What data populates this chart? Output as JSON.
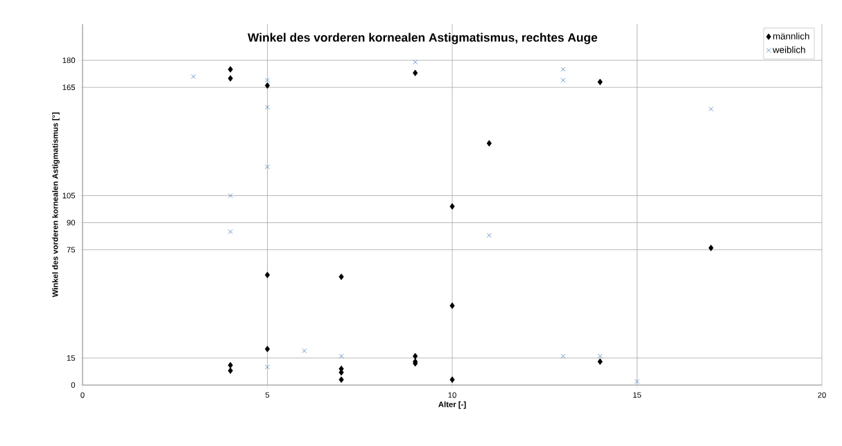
{
  "chart_data": {
    "type": "scatter",
    "title": "Winkel des vorderen kornealen Astigmatismus, rechtes Auge",
    "xlabel": "Alter [-]",
    "ylabel": "Winkel des vorderen kornealen Astigmatismus [°]",
    "xlim": [
      0,
      20
    ],
    "ylim": [
      0,
      200
    ],
    "xticks": [
      0,
      5,
      10,
      15,
      20
    ],
    "yticks": [
      0,
      15,
      75,
      90,
      105,
      165,
      180
    ],
    "grid": true,
    "legend": "top right",
    "series": [
      {
        "name": "männlich",
        "color": "#000000",
        "marker": "diamond",
        "x": [
          4,
          4,
          4,
          4,
          5,
          5,
          5,
          7,
          7,
          7,
          7,
          9,
          9,
          9,
          9,
          10,
          10,
          10,
          11,
          14,
          14,
          17
        ],
        "values": [
          175,
          170,
          11,
          8,
          166,
          61,
          20,
          60,
          9,
          7,
          3,
          173,
          16,
          13,
          12,
          99,
          44,
          3,
          134,
          168,
          13,
          76
        ]
      },
      {
        "name": "weiblich",
        "color": "#4a7ebb",
        "marker": "cross",
        "x": [
          3,
          4,
          4,
          5,
          5,
          5,
          5,
          6,
          7,
          9,
          11,
          13,
          13,
          13,
          14,
          15,
          17
        ],
        "values": [
          171,
          105,
          85,
          169,
          154,
          121,
          10,
          19,
          16,
          179,
          83,
          175,
          169,
          16,
          16,
          2,
          153
        ]
      }
    ]
  }
}
